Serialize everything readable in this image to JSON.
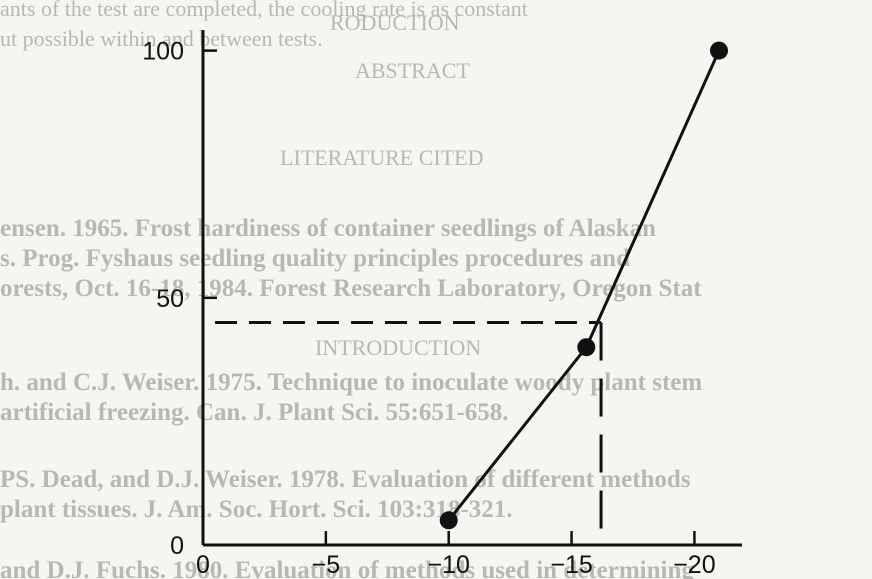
{
  "chart_data": {
    "type": "scatter",
    "title": "",
    "xlabel": "",
    "ylabel": "",
    "xlim": [
      0,
      -21
    ],
    "ylim": [
      0,
      107
    ],
    "x_ticks": [
      0,
      -5,
      -10,
      -15,
      -20
    ],
    "x_tick_labels": [
      "0",
      "−5",
      "−10",
      "−15",
      "−20"
    ],
    "y_ticks": [
      0,
      50,
      100
    ],
    "y_tick_labels": [
      "0",
      "50",
      "100"
    ],
    "grid": false,
    "legend": "none",
    "series": [
      {
        "x": [
          -10,
          -15.6,
          -21
        ],
        "y": [
          5,
          40,
          100
        ]
      }
    ],
    "annotations": {
      "ld50_y": 45,
      "ld50_x": -16.2
    },
    "colors": {
      "ink": "#111111",
      "paper": "#f6f5f2",
      "bleed_through": "#b9b7b2"
    }
  },
  "background_text": {
    "lines": [
      "ants of the test are completed, the cooling rate is as constant",
      "ut possible within and between tests.",
      "RODUCTION",
      "ABSTRACT",
      "LITERATURE CITED",
      "ensen. 1965. Frost hardiness of container seedlings of Alaskan",
      "s. Prog. Fyshaus seedling quality principles procedures and",
      "orests, Oct. 16-18, 1984. Forest Research Laboratory, Oregon Stat",
      "INTRODUCTION",
      "h. and C.J. Weiser. 1975. Technique to inoculate woody plant stem",
      "artificial freezing. Can. J. Plant Sci. 55:651-658.",
      "PS. Dead, and D.J. Weiser. 1978. Evaluation of different methods",
      "plant tissues. J. Am. Soc. Hort. Sci. 103:318-321.",
      "and D.J. Fuchs. 1980. Evaluation of methods used in determining"
    ]
  }
}
